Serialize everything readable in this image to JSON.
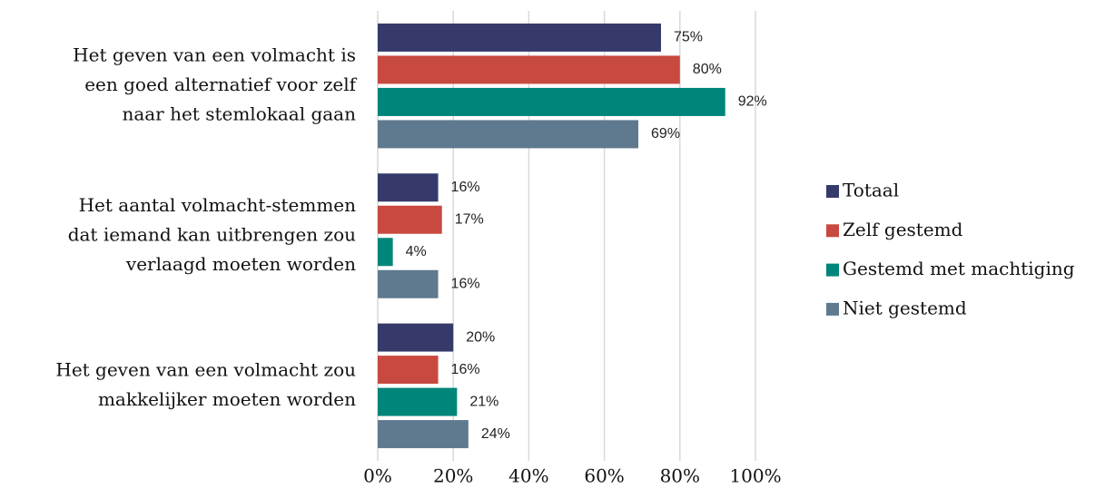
{
  "chart_data": {
    "type": "barh",
    "categories": [
      [
        "Het geven van een volmacht is",
        "een goed alternatief voor zelf",
        "naar het stemlokaal gaan"
      ],
      [
        "Het aantal volmacht-stemmen",
        "dat iemand kan uitbrengen zou",
        "verlaagd moeten worden"
      ],
      [
        "Het geven van een volmacht zou",
        "makkelijker moeten worden"
      ]
    ],
    "series": [
      {
        "name": "Totaal",
        "color": "#363a6b",
        "values": [
          75,
          16,
          20
        ],
        "value_labels": [
          "75%",
          "16%",
          "20%"
        ]
      },
      {
        "name": "Zelf gestemd",
        "color": "#c8493f",
        "values": [
          80,
          17,
          16
        ],
        "value_labels": [
          "80%",
          "17%",
          "16%"
        ]
      },
      {
        "name": "Gestemd met machtiging",
        "color": "#00857a",
        "values": [
          92,
          4,
          21
        ],
        "value_labels": [
          "92%",
          "4%",
          "21%"
        ]
      },
      {
        "name": "Niet gestemd",
        "color": "#5f7a8e",
        "values": [
          69,
          16,
          24
        ],
        "value_labels": [
          "69%",
          "16%",
          "24%"
        ]
      }
    ],
    "xlim": [
      0,
      100
    ],
    "xticks": [
      {
        "value": 0,
        "label": "0%"
      },
      {
        "value": 20,
        "label": "20%"
      },
      {
        "value": 40,
        "label": "40%"
      },
      {
        "value": 60,
        "label": "60%"
      },
      {
        "value": 80,
        "label": "80%"
      },
      {
        "value": 100,
        "label": "100%"
      }
    ],
    "grid": true,
    "legend": "right"
  }
}
